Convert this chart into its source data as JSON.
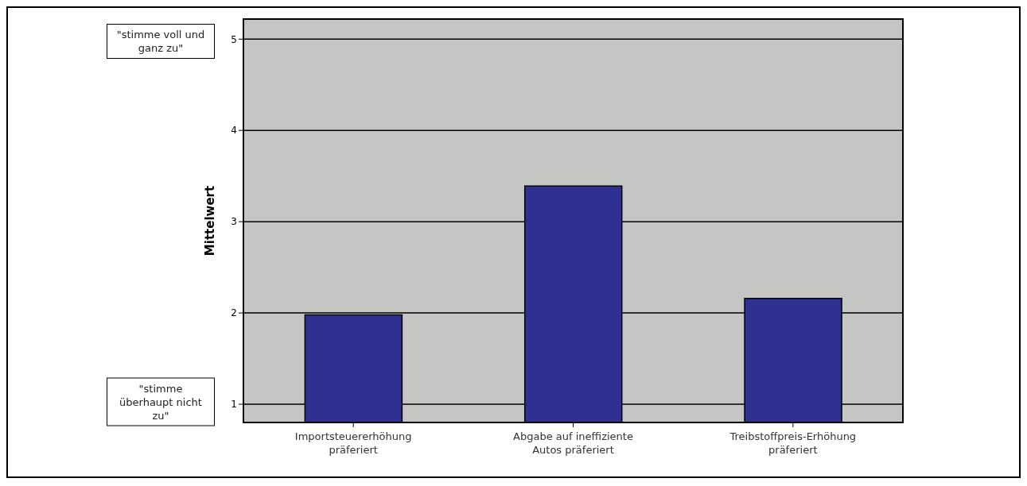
{
  "chart_data": {
    "type": "bar",
    "ylabel": "Mittelwert",
    "categories": [
      "Importsteuererhöhung präferiert",
      "Abgabe auf ineffiziente Autos präferiert",
      "Treibstoffpreis-Erhöhung präferiert"
    ],
    "values": [
      1.98,
      3.39,
      2.16
    ],
    "color": "#2e3192",
    "ylim": [
      0.8,
      5.22
    ],
    "yticks": [
      1,
      2,
      3,
      4,
      5
    ],
    "grid": "y",
    "legend": false,
    "annotations": [
      "\"stimme voll und ganz zu\"",
      "\"stimme überhaupt nicht zu\""
    ]
  }
}
